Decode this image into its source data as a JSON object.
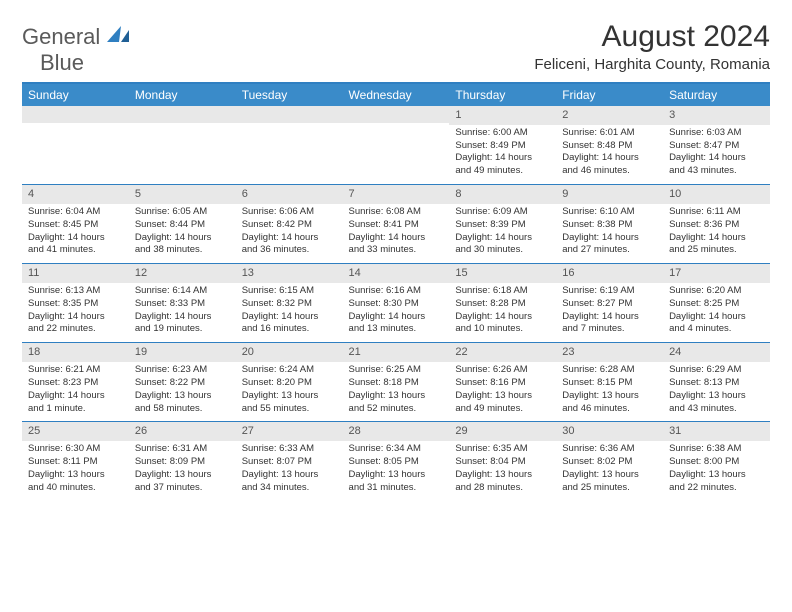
{
  "logo": {
    "line1": "General",
    "line2": "Blue"
  },
  "title": "August 2024",
  "subtitle": "Feliceni, Harghita County, Romania",
  "colors": {
    "header_bg": "#3a8bc9",
    "accent": "#2f7fc1",
    "daynum_bg": "#e8e8e8",
    "text": "#333333",
    "logo_gray": "#5a5a5a"
  },
  "dayNames": [
    "Sunday",
    "Monday",
    "Tuesday",
    "Wednesday",
    "Thursday",
    "Friday",
    "Saturday"
  ],
  "weeks": [
    [
      {
        "n": "",
        "sr": "",
        "ss": "",
        "dl": ""
      },
      {
        "n": "",
        "sr": "",
        "ss": "",
        "dl": ""
      },
      {
        "n": "",
        "sr": "",
        "ss": "",
        "dl": ""
      },
      {
        "n": "",
        "sr": "",
        "ss": "",
        "dl": ""
      },
      {
        "n": "1",
        "sr": "Sunrise: 6:00 AM",
        "ss": "Sunset: 8:49 PM",
        "dl": "Daylight: 14 hours and 49 minutes."
      },
      {
        "n": "2",
        "sr": "Sunrise: 6:01 AM",
        "ss": "Sunset: 8:48 PM",
        "dl": "Daylight: 14 hours and 46 minutes."
      },
      {
        "n": "3",
        "sr": "Sunrise: 6:03 AM",
        "ss": "Sunset: 8:47 PM",
        "dl": "Daylight: 14 hours and 43 minutes."
      }
    ],
    [
      {
        "n": "4",
        "sr": "Sunrise: 6:04 AM",
        "ss": "Sunset: 8:45 PM",
        "dl": "Daylight: 14 hours and 41 minutes."
      },
      {
        "n": "5",
        "sr": "Sunrise: 6:05 AM",
        "ss": "Sunset: 8:44 PM",
        "dl": "Daylight: 14 hours and 38 minutes."
      },
      {
        "n": "6",
        "sr": "Sunrise: 6:06 AM",
        "ss": "Sunset: 8:42 PM",
        "dl": "Daylight: 14 hours and 36 minutes."
      },
      {
        "n": "7",
        "sr": "Sunrise: 6:08 AM",
        "ss": "Sunset: 8:41 PM",
        "dl": "Daylight: 14 hours and 33 minutes."
      },
      {
        "n": "8",
        "sr": "Sunrise: 6:09 AM",
        "ss": "Sunset: 8:39 PM",
        "dl": "Daylight: 14 hours and 30 minutes."
      },
      {
        "n": "9",
        "sr": "Sunrise: 6:10 AM",
        "ss": "Sunset: 8:38 PM",
        "dl": "Daylight: 14 hours and 27 minutes."
      },
      {
        "n": "10",
        "sr": "Sunrise: 6:11 AM",
        "ss": "Sunset: 8:36 PM",
        "dl": "Daylight: 14 hours and 25 minutes."
      }
    ],
    [
      {
        "n": "11",
        "sr": "Sunrise: 6:13 AM",
        "ss": "Sunset: 8:35 PM",
        "dl": "Daylight: 14 hours and 22 minutes."
      },
      {
        "n": "12",
        "sr": "Sunrise: 6:14 AM",
        "ss": "Sunset: 8:33 PM",
        "dl": "Daylight: 14 hours and 19 minutes."
      },
      {
        "n": "13",
        "sr": "Sunrise: 6:15 AM",
        "ss": "Sunset: 8:32 PM",
        "dl": "Daylight: 14 hours and 16 minutes."
      },
      {
        "n": "14",
        "sr": "Sunrise: 6:16 AM",
        "ss": "Sunset: 8:30 PM",
        "dl": "Daylight: 14 hours and 13 minutes."
      },
      {
        "n": "15",
        "sr": "Sunrise: 6:18 AM",
        "ss": "Sunset: 8:28 PM",
        "dl": "Daylight: 14 hours and 10 minutes."
      },
      {
        "n": "16",
        "sr": "Sunrise: 6:19 AM",
        "ss": "Sunset: 8:27 PM",
        "dl": "Daylight: 14 hours and 7 minutes."
      },
      {
        "n": "17",
        "sr": "Sunrise: 6:20 AM",
        "ss": "Sunset: 8:25 PM",
        "dl": "Daylight: 14 hours and 4 minutes."
      }
    ],
    [
      {
        "n": "18",
        "sr": "Sunrise: 6:21 AM",
        "ss": "Sunset: 8:23 PM",
        "dl": "Daylight: 14 hours and 1 minute."
      },
      {
        "n": "19",
        "sr": "Sunrise: 6:23 AM",
        "ss": "Sunset: 8:22 PM",
        "dl": "Daylight: 13 hours and 58 minutes."
      },
      {
        "n": "20",
        "sr": "Sunrise: 6:24 AM",
        "ss": "Sunset: 8:20 PM",
        "dl": "Daylight: 13 hours and 55 minutes."
      },
      {
        "n": "21",
        "sr": "Sunrise: 6:25 AM",
        "ss": "Sunset: 8:18 PM",
        "dl": "Daylight: 13 hours and 52 minutes."
      },
      {
        "n": "22",
        "sr": "Sunrise: 6:26 AM",
        "ss": "Sunset: 8:16 PM",
        "dl": "Daylight: 13 hours and 49 minutes."
      },
      {
        "n": "23",
        "sr": "Sunrise: 6:28 AM",
        "ss": "Sunset: 8:15 PM",
        "dl": "Daylight: 13 hours and 46 minutes."
      },
      {
        "n": "24",
        "sr": "Sunrise: 6:29 AM",
        "ss": "Sunset: 8:13 PM",
        "dl": "Daylight: 13 hours and 43 minutes."
      }
    ],
    [
      {
        "n": "25",
        "sr": "Sunrise: 6:30 AM",
        "ss": "Sunset: 8:11 PM",
        "dl": "Daylight: 13 hours and 40 minutes."
      },
      {
        "n": "26",
        "sr": "Sunrise: 6:31 AM",
        "ss": "Sunset: 8:09 PM",
        "dl": "Daylight: 13 hours and 37 minutes."
      },
      {
        "n": "27",
        "sr": "Sunrise: 6:33 AM",
        "ss": "Sunset: 8:07 PM",
        "dl": "Daylight: 13 hours and 34 minutes."
      },
      {
        "n": "28",
        "sr": "Sunrise: 6:34 AM",
        "ss": "Sunset: 8:05 PM",
        "dl": "Daylight: 13 hours and 31 minutes."
      },
      {
        "n": "29",
        "sr": "Sunrise: 6:35 AM",
        "ss": "Sunset: 8:04 PM",
        "dl": "Daylight: 13 hours and 28 minutes."
      },
      {
        "n": "30",
        "sr": "Sunrise: 6:36 AM",
        "ss": "Sunset: 8:02 PM",
        "dl": "Daylight: 13 hours and 25 minutes."
      },
      {
        "n": "31",
        "sr": "Sunrise: 6:38 AM",
        "ss": "Sunset: 8:00 PM",
        "dl": "Daylight: 13 hours and 22 minutes."
      }
    ]
  ]
}
